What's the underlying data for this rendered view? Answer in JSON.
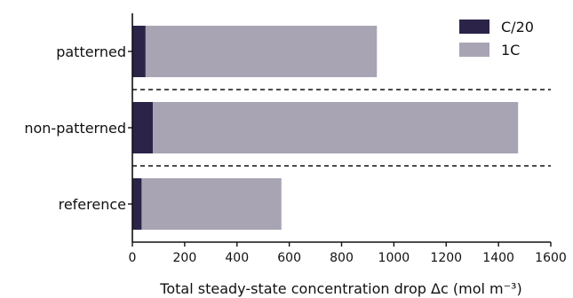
{
  "chart_data": {
    "type": "bar",
    "orientation": "horizontal",
    "stacking": "overlaid",
    "categories": [
      "patterned",
      "non-patterned",
      "reference"
    ],
    "series": [
      {
        "name": "1C",
        "values": [
          935,
          1475,
          570
        ],
        "color": "#a8a4b4"
      },
      {
        "name": "C/20",
        "values": [
          50,
          78,
          35
        ],
        "color": "#2b2448"
      }
    ],
    "legend": {
      "position": "top-right",
      "order": [
        "C/20",
        "1C"
      ]
    },
    "xlim": [
      0,
      1600
    ],
    "xticks": [
      0,
      200,
      400,
      600,
      800,
      1000,
      1200,
      1400,
      1600
    ],
    "xlabel": "Total steady-state concentration drop Δc (mol m⁻³)",
    "ylabel": "",
    "title": "",
    "separators": "dashed lines between categories",
    "grid": false
  }
}
